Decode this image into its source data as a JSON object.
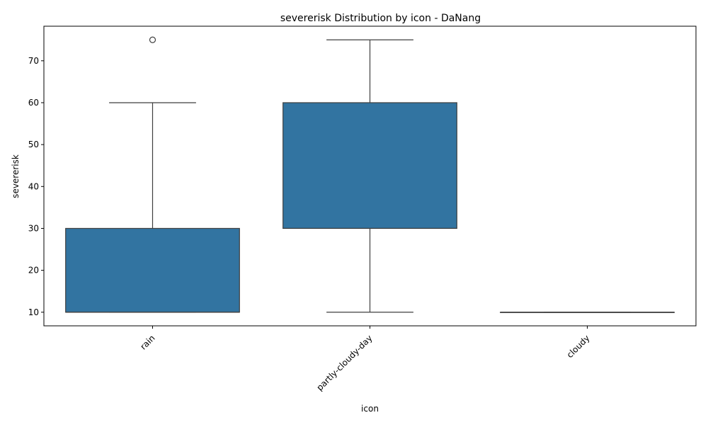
{
  "chart_data": {
    "type": "box",
    "title": "severerisk Distribution by icon - DaNang",
    "xlabel": "icon",
    "ylabel": "severerisk",
    "ylim": [
      6.75,
      78.25
    ],
    "yticks": [
      10,
      20,
      30,
      40,
      50,
      60,
      70
    ],
    "grid": false,
    "legend": "none",
    "colors": {
      "box": "#3274a1",
      "line": "#3f3f3f",
      "axis": "#000000"
    },
    "categories": [
      "rain",
      "partly-cloudy-day",
      "cloudy"
    ],
    "boxes": [
      {
        "category": "rain",
        "whisker_low": 10,
        "q1": 10,
        "median": 10,
        "q3": 30,
        "whisker_high": 60,
        "outliers": [
          75
        ]
      },
      {
        "category": "partly-cloudy-day",
        "whisker_low": 10,
        "q1": 30,
        "median": 30,
        "q3": 60,
        "whisker_high": 75,
        "outliers": []
      },
      {
        "category": "cloudy",
        "whisker_low": 10,
        "q1": 10,
        "median": 10,
        "q3": 10,
        "whisker_high": 10,
        "outliers": []
      }
    ]
  }
}
